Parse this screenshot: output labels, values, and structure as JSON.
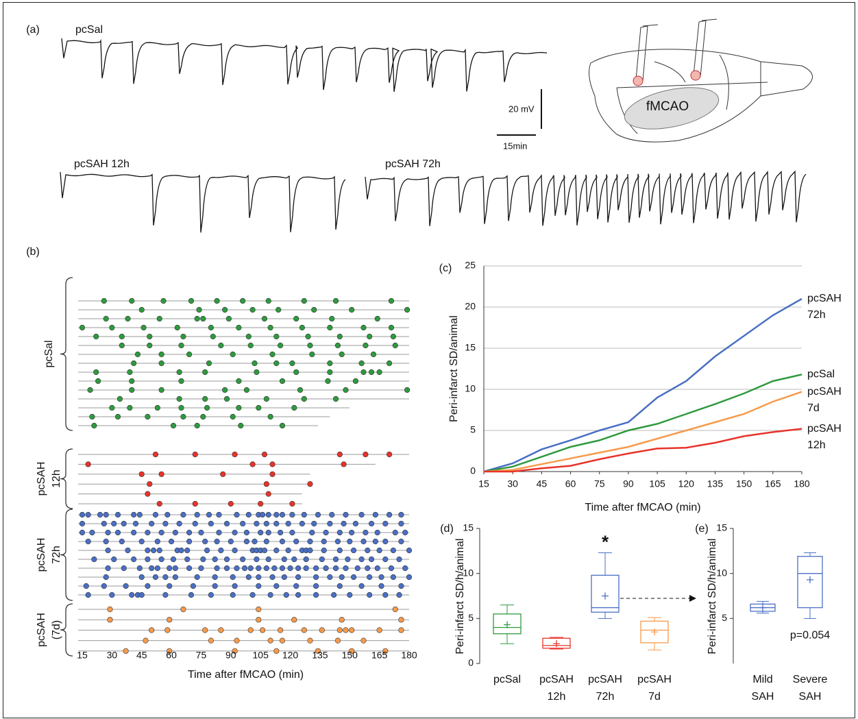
{
  "panel_a": {
    "panel_label": "(a)",
    "traces": [
      "pcSal",
      "pcSAH 12h",
      "pcSAH 72h"
    ],
    "scale_bars": [
      "20 mV",
      "15min"
    ],
    "region": "fMCAO"
  },
  "chart_data": [
    {
      "type": "raster",
      "panel_label": "(b)",
      "xlabel": "Time after fMCAO (min)",
      "xlim": [
        15,
        180
      ],
      "xticks": [
        15,
        30,
        45,
        60,
        75,
        90,
        105,
        120,
        135,
        150,
        165,
        180
      ],
      "groups": [
        {
          "label": [
            "pcSal"
          ],
          "color": "#2e9a3e",
          "rows": [
            {
              "end": 180,
              "events": [
                26,
                40,
                56,
                70,
                83,
                96,
                109,
                127,
                143,
                171
              ]
            },
            {
              "end": 180,
              "events": [
                45,
                74,
                87,
                101,
                114,
                132,
                151,
                179
              ]
            },
            {
              "end": 180,
              "events": [
                27,
                38,
                54,
                73,
                76,
                89,
                107,
                123,
                141,
                164
              ]
            },
            {
              "end": 180,
              "events": [
                15,
                30,
                46,
                63,
                80,
                94,
                110,
                126,
                140,
                157,
                171
              ]
            },
            {
              "end": 180,
              "events": [
                22,
                35,
                49,
                66,
                81,
                99,
                113,
                129,
                145,
                160,
                172
              ]
            },
            {
              "end": 180,
              "events": [
                35,
                49,
                65,
                85,
                100,
                115,
                130,
                144,
                158,
                173
              ]
            },
            {
              "end": 180,
              "events": [
                43,
                55,
                69,
                91,
                111,
                131,
                146,
                162
              ]
            },
            {
              "end": 180,
              "events": [
                41,
                55,
                79,
                102,
                113,
                121,
                140,
                156,
                170
              ]
            },
            {
              "end": 180,
              "events": [
                22,
                39,
                64,
                77,
                103,
                123,
                140,
                157,
                161,
                165
              ]
            },
            {
              "end": 180,
              "events": [
                23,
                40,
                65,
                94,
                116,
                139,
                153
              ]
            },
            {
              "end": 180,
              "events": [
                19,
                40,
                55,
                87,
                98,
                125,
                148,
                179
              ]
            },
            {
              "end": 180,
              "events": [
                34,
                64,
                77,
                88,
                108,
                127,
                143
              ]
            },
            {
              "end": 150,
              "events": [
                30,
                39,
                53,
                65,
                78,
                94,
                104,
                122
              ]
            },
            {
              "end": 140,
              "events": [
                20,
                33,
                48,
                66,
                76,
                91,
                110
              ]
            },
            {
              "end": 134,
              "events": [
                21,
                61,
                73,
                95,
                116
              ]
            }
          ]
        },
        {
          "label": [
            "pcSAH",
            "12h"
          ],
          "color": "#e8332a",
          "rows": [
            {
              "end": 180,
              "events": [
                52,
                72,
                92,
                107,
                145,
                158,
                170
              ]
            },
            {
              "end": 163,
              "events": [
                18,
                101,
                111,
                147
              ]
            },
            {
              "end": 130,
              "events": [
                45,
                55,
                86,
                111
              ]
            },
            {
              "end": 131,
              "events": [
                49,
                108,
                130
              ]
            },
            {
              "end": 126,
              "events": [
                48,
                109
              ]
            },
            {
              "end": 126,
              "events": [
                54,
                72,
                90,
                105,
                121
              ]
            }
          ]
        },
        {
          "label": [
            "pcSAH",
            "72h"
          ],
          "color": "#4a6fc4",
          "rows": [
            {
              "end": 180,
              "events": [
                15,
                18,
                24,
                27,
                33,
                41,
                44,
                52,
                58,
                66,
                73,
                79,
                84,
                93,
                99,
                104,
                106,
                109,
                113,
                116,
                121,
                127,
                134,
                141,
                148,
                156,
                163,
                170,
                176
              ]
            },
            {
              "end": 180,
              "events": [
                15,
                26,
                31,
                36,
                42,
                50,
                57,
                64,
                72,
                80,
                88,
                96,
                103,
                108,
                113,
                119,
                126,
                132,
                140,
                147,
                153,
                161,
                168,
                176
              ]
            },
            {
              "end": 180,
              "events": [
                15,
                20,
                28,
                33,
                41,
                48,
                55,
                62,
                69,
                75,
                84,
                92,
                98,
                105,
                109,
                115,
                121,
                131,
                138,
                145,
                151,
                158,
                164,
                173,
                178
              ]
            },
            {
              "end": 180,
              "events": [
                18,
                27,
                35,
                45,
                53,
                60,
                69,
                77,
                83,
                90,
                98,
                102,
                108,
                116,
                123,
                130,
                137,
                144,
                150,
                157,
                163,
                168,
                176
              ]
            },
            {
              "end": 180,
              "events": [
                28,
                38,
                48,
                51,
                54,
                63,
                65,
                68,
                78,
                85,
                92,
                101,
                103,
                105,
                107,
                113,
                119,
                126,
                128,
                130,
                137,
                145,
                152,
                159,
                165,
                172,
                180
              ]
            },
            {
              "end": 180,
              "events": [
                21,
                31,
                41,
                48,
                55,
                61,
                68,
                76,
                82,
                88,
                96,
                103,
                109,
                117,
                122,
                128,
                136,
                143,
                149,
                156,
                161,
                168,
                175
              ]
            },
            {
              "end": 180,
              "events": [
                28,
                36,
                44,
                50,
                53,
                59,
                62,
                69,
                75,
                83,
                88,
                93,
                97,
                100,
                104,
                108,
                112,
                116,
                120,
                124,
                128,
                133,
                138,
                143,
                148,
                154,
                159,
                164,
                171,
                178
              ]
            },
            {
              "end": 180,
              "events": [
                27,
                45,
                52,
                57,
                62,
                73,
                82,
                91,
                99,
                104,
                111,
                117,
                124,
                133,
                140,
                146,
                152,
                160,
                166,
                172,
                180
              ]
            },
            {
              "end": 180,
              "events": [
                17,
                26,
                37,
                48,
                59,
                71,
                82,
                92,
                104,
                113,
                123,
                133,
                145,
                156,
                166,
                176
              ]
            },
            {
              "end": 180,
              "events": [
                18,
                30,
                40,
                43,
                45,
                57,
                70,
                80,
                91,
                101,
                110,
                118,
                124,
                133,
                142,
                150,
                160,
                168,
                175
              ]
            }
          ]
        },
        {
          "label": [
            "pcSAH",
            "(7d)"
          ],
          "color": "#f79a4a",
          "rows": [
            {
              "end": 180,
              "events": [
                29,
                66,
                104,
                173
              ]
            },
            {
              "end": 180,
              "events": [
                29,
                59,
                104,
                122,
                146,
                176
              ]
            },
            {
              "end": 180,
              "events": [
                50,
                58,
                77,
                85,
                100,
                106,
                115,
                127,
                136,
                145,
                148,
                151,
                165,
                176
              ]
            },
            {
              "end": 180,
              "events": [
                47,
                80,
                93,
                110,
                116,
                130,
                144,
                157
              ]
            },
            {
              "end": 180,
              "events": [
                37,
                59,
                92,
                113,
                134,
                151,
                168
              ]
            }
          ]
        }
      ]
    },
    {
      "type": "line",
      "panel_label": "(c)",
      "ylabel": "Peri-infarct SD/animal",
      "xlabel": "Time after fMCAO (min)",
      "x": [
        15,
        30,
        45,
        60,
        75,
        90,
        105,
        120,
        135,
        150,
        165,
        180
      ],
      "xlim": [
        15,
        180
      ],
      "xticks": [
        15,
        30,
        45,
        60,
        75,
        90,
        105,
        120,
        135,
        150,
        165,
        180
      ],
      "ylim": [
        0,
        25
      ],
      "yticks": [
        0,
        5,
        10,
        15,
        20,
        25
      ],
      "grid": true,
      "series": [
        {
          "label": [
            "pcSAH",
            "72h"
          ],
          "color": "#4a6fc4",
          "values": [
            0,
            1,
            2.7,
            3.8,
            5,
            6,
            9,
            11,
            14,
            16.5,
            19,
            21
          ]
        },
        {
          "label": [
            "pcSal"
          ],
          "color": "#2e9a3e",
          "values": [
            0,
            0.6,
            1.8,
            3,
            3.8,
            5,
            5.8,
            7,
            8.2,
            9.5,
            11,
            11.8
          ]
        },
        {
          "label": [
            "pcSAH",
            "7d"
          ],
          "color": "#f79a4a",
          "values": [
            0,
            0.2,
            0.9,
            1.6,
            2.3,
            3,
            4,
            5,
            6,
            7,
            8.5,
            9.7
          ]
        },
        {
          "label": [
            "pcSAH",
            "12h"
          ],
          "color": "#e8332a",
          "values": [
            0,
            0,
            0.4,
            0.7,
            1.5,
            2.2,
            2.8,
            2.9,
            3.5,
            4.3,
            4.8,
            5.2
          ]
        }
      ]
    },
    {
      "type": "box",
      "panel_label": "(d)",
      "ylabel": "Peri-infarct SD/h/animal",
      "ylim": [
        0,
        15
      ],
      "yticks": [
        0,
        5,
        10,
        15
      ],
      "annotation": "*",
      "categories": [
        [
          "pcSal"
        ],
        [
          "pcSAH",
          "12h"
        ],
        [
          "pcSAH",
          "72h"
        ],
        [
          "pcSAH",
          "7d"
        ]
      ],
      "boxes": [
        {
          "color": "#2e9a3e",
          "min": 2.2,
          "q1": 3.3,
          "median": 4,
          "q3": 5.5,
          "max": 6.5,
          "mean": 4.3
        },
        {
          "color": "#e8332a",
          "min": 1.6,
          "q1": 1.7,
          "median": 2,
          "q3": 2.8,
          "max": 2.9,
          "mean": 2.2
        },
        {
          "color": "#4a6fc4",
          "min": 5,
          "q1": 5.7,
          "median": 6.2,
          "q3": 9.8,
          "max": 12.3,
          "mean": 7.5
        },
        {
          "color": "#f79a4a",
          "min": 1.5,
          "q1": 2.3,
          "median": 3.7,
          "q3": 4.7,
          "max": 5.1,
          "mean": 3.5
        }
      ]
    },
    {
      "type": "box",
      "panel_label": "(e)",
      "ylabel": "Peri-infarct SD/h/animal",
      "ylim": [
        0,
        15
      ],
      "yticks": [
        5,
        10,
        15
      ],
      "annotation": "p=0.054",
      "categories": [
        [
          "Mild",
          "SAH"
        ],
        [
          "Severe",
          "SAH"
        ]
      ],
      "boxes": [
        {
          "color": "#4a6fc4",
          "min": 5.6,
          "q1": 5.8,
          "median": 6.2,
          "q3": 6.6,
          "max": 6.9,
          "mean": 6.2
        },
        {
          "color": "#4a6fc4",
          "min": 5,
          "q1": 6.2,
          "median": 10,
          "q3": 11.9,
          "max": 12.3,
          "mean": 9.3
        }
      ]
    }
  ]
}
